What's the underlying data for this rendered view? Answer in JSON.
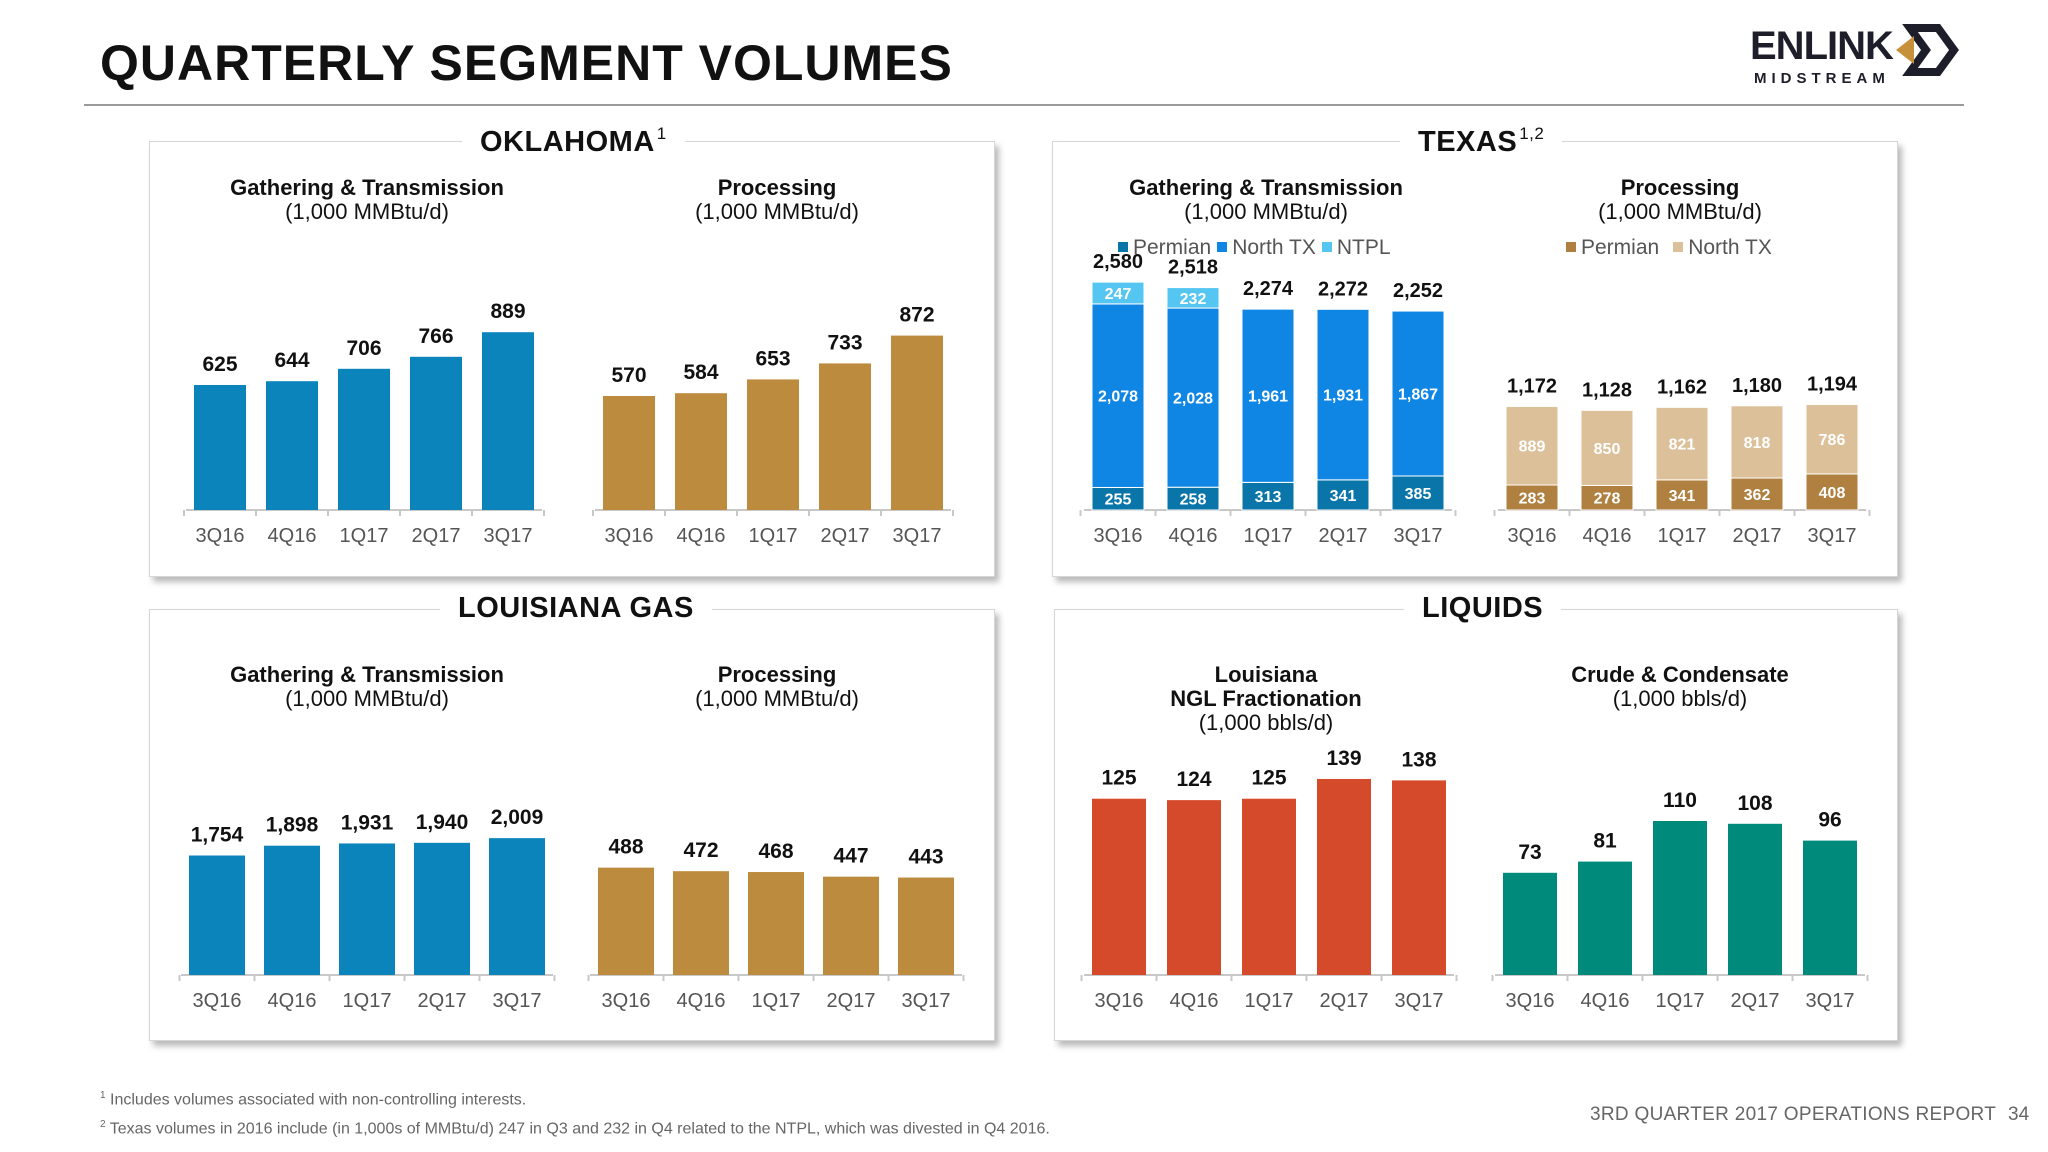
{
  "title": "QUARTERLY SEGMENT VOLUMES",
  "logo": {
    "brand": "ENLINK",
    "sub": "MIDSTREAM"
  },
  "colors": {
    "ok_blue": "#0a84ba",
    "gold": "#bd8b3e",
    "permian": "#0a75a8",
    "north_tx": "#0f86e4",
    "ntpl": "#55c6f2",
    "tx_proc_permian": "#b08040",
    "tx_proc_north": "#dcc09a",
    "red": "#d64a2c",
    "teal": "#008a7c"
  },
  "sections": {
    "oklahoma": {
      "title": "OKLAHOMA",
      "sup": "1"
    },
    "texas": {
      "title": "TEXAS",
      "sup": "1,2"
    },
    "louisiana": {
      "title": "LOUISIANA GAS",
      "sup": ""
    },
    "liquids": {
      "title": "LIQUIDS",
      "sup": ""
    }
  },
  "headings": {
    "ok_gt": {
      "bold": "Gathering & Transmission",
      "unit": "(1,000 MMBtu/d)"
    },
    "ok_proc": {
      "bold": "Processing",
      "unit": "(1,000 MMBtu/d)"
    },
    "tx_gt": {
      "bold": "Gathering & Transmission",
      "unit": "(1,000 MMBtu/d)"
    },
    "tx_proc": {
      "bold": "Processing",
      "unit": "(1,000 MMBtu/d)"
    },
    "la_gt": {
      "bold": "Gathering & Transmission",
      "unit": "(1,000 MMBtu/d)"
    },
    "la_proc": {
      "bold": "Processing",
      "unit": "(1,000 MMBtu/d)"
    },
    "liq_ngl": {
      "bold1": "Louisiana",
      "bold2": "NGL Fractionation",
      "unit": "(1,000 bbls/d)"
    },
    "liq_crude": {
      "bold": "Crude & Condensate",
      "unit": "(1,000 bbls/d)"
    }
  },
  "legends": {
    "tx_gt": [
      "Permian",
      "North TX",
      "NTPL"
    ],
    "tx_proc": [
      "Permian",
      "North TX"
    ]
  },
  "chart_data": [
    {
      "id": "ok_gt",
      "type": "bar",
      "title": "Oklahoma Gathering & Transmission (1,000 MMBtu/d)",
      "categories": [
        "3Q16",
        "4Q16",
        "1Q17",
        "2Q17",
        "3Q17"
      ],
      "values": [
        625,
        644,
        706,
        766,
        889
      ],
      "labels": [
        "625",
        "644",
        "706",
        "766",
        "889"
      ],
      "ymax": 1000
    },
    {
      "id": "ok_proc",
      "type": "bar",
      "title": "Oklahoma Processing (1,000 MMBtu/d)",
      "categories": [
        "3Q16",
        "4Q16",
        "1Q17",
        "2Q17",
        "3Q17"
      ],
      "values": [
        570,
        584,
        653,
        733,
        872
      ],
      "labels": [
        "570",
        "584",
        "653",
        "733",
        "872"
      ],
      "ymax": 1000
    },
    {
      "id": "tx_gt",
      "type": "bar",
      "stacked": true,
      "title": "Texas Gathering & Transmission (1,000 MMBtu/d)",
      "categories": [
        "3Q16",
        "4Q16",
        "1Q17",
        "2Q17",
        "3Q17"
      ],
      "series": [
        {
          "name": "Permian",
          "values": [
            255,
            258,
            313,
            341,
            385
          ],
          "labels": [
            "255",
            "258",
            "313",
            "341",
            "385"
          ]
        },
        {
          "name": "North TX",
          "values": [
            2078,
            2028,
            1961,
            1931,
            1867
          ],
          "labels": [
            "2,078",
            "2,028",
            "1,961",
            "1,931",
            "1,867"
          ]
        },
        {
          "name": "NTPL",
          "values": [
            247,
            232,
            0,
            0,
            0
          ],
          "labels": [
            "247",
            "232",
            "",
            "",
            ""
          ]
        }
      ],
      "totals": [
        "2,580",
        "2,518",
        "2,274",
        "2,272",
        "2,252"
      ],
      "ymax": 3000
    },
    {
      "id": "tx_proc",
      "type": "bar",
      "stacked": true,
      "title": "Texas Processing (1,000 MMBtu/d)",
      "categories": [
        "3Q16",
        "4Q16",
        "1Q17",
        "2Q17",
        "3Q17"
      ],
      "series": [
        {
          "name": "Permian",
          "values": [
            283,
            278,
            341,
            362,
            408
          ],
          "labels": [
            "283",
            "278",
            "341",
            "362",
            "408"
          ]
        },
        {
          "name": "North TX",
          "values": [
            889,
            850,
            821,
            818,
            786
          ],
          "labels": [
            "889",
            "850",
            "821",
            "818",
            "786"
          ]
        }
      ],
      "totals": [
        "1,172",
        "1,128",
        "1,162",
        "1,180",
        "1,194"
      ],
      "ymax": 3000
    },
    {
      "id": "la_gt",
      "type": "bar",
      "title": "Louisiana Gas Gathering & Transmission (1,000 MMBtu/d)",
      "categories": [
        "3Q16",
        "4Q16",
        "1Q17",
        "2Q17",
        "3Q17"
      ],
      "values": [
        1754,
        1898,
        1931,
        1940,
        2009
      ],
      "labels": [
        "1,754",
        "1,898",
        "1,931",
        "1,940",
        "2,009"
      ],
      "ymax": 3200
    },
    {
      "id": "la_proc",
      "type": "bar",
      "title": "Louisiana Gas Processing (1,000 MMBtu/d)",
      "categories": [
        "3Q16",
        "4Q16",
        "1Q17",
        "2Q17",
        "3Q17"
      ],
      "values": [
        488,
        472,
        468,
        447,
        443
      ],
      "labels": [
        "488",
        "472",
        "468",
        "447",
        "443"
      ],
      "ymax": 800
    },
    {
      "id": "liq_ngl",
      "type": "bar",
      "title": "Louisiana NGL Fractionation (1,000 bbls/d)",
      "categories": [
        "3Q16",
        "4Q16",
        "1Q17",
        "2Q17",
        "3Q17"
      ],
      "values": [
        125,
        124,
        125,
        139,
        138
      ],
      "labels": [
        "125",
        "124",
        "125",
        "139",
        "138"
      ],
      "ymax": 195
    },
    {
      "id": "liq_crude",
      "type": "bar",
      "title": "Crude & Condensate (1,000 bbls/d)",
      "categories": [
        "3Q16",
        "4Q16",
        "1Q17",
        "2Q17",
        "3Q17"
      ],
      "values": [
        73,
        81,
        110,
        108,
        96
      ],
      "labels": [
        "73",
        "81",
        "110",
        "108",
        "96"
      ],
      "ymax": 175
    }
  ],
  "footnotes": {
    "n1_mark": "1",
    "n1": "Includes volumes associated with non-controlling interests.",
    "n2_mark": "2",
    "n2": "Texas volumes in 2016  include (in 1,000s of MMBtu/d) 247 in Q3 and 232 in Q4 related to the NTPL, which was divested in Q4 2016."
  },
  "footer": {
    "report": "3RD QUARTER 2017 OPERATIONS REPORT",
    "page": "34"
  }
}
